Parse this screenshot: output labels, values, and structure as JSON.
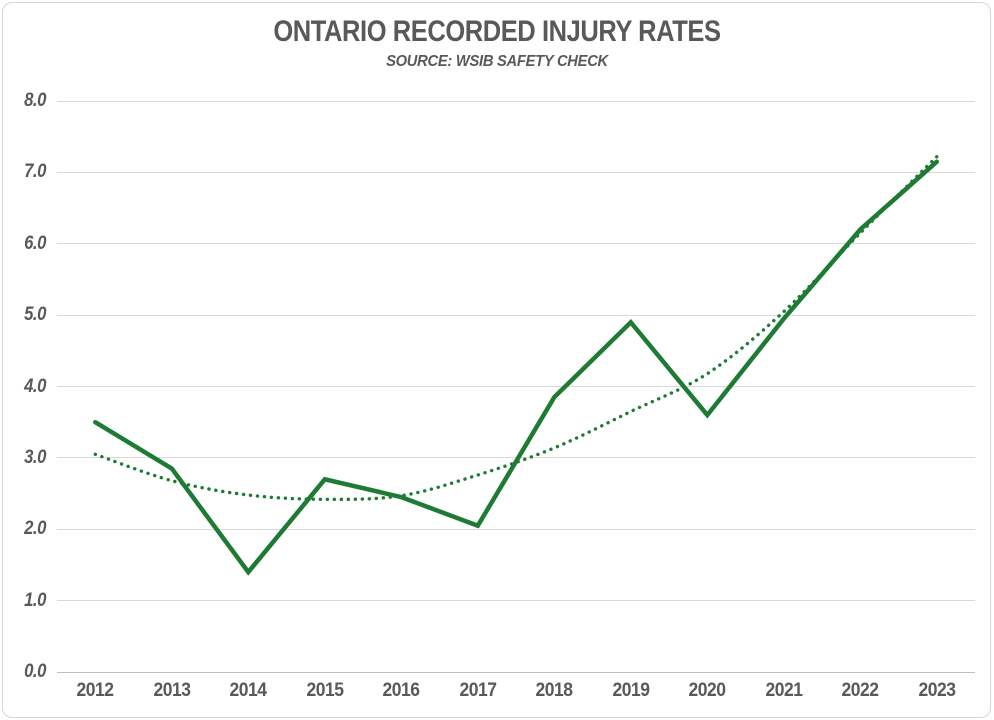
{
  "chart_data": {
    "type": "line",
    "title": "ONTARIO RECORDED INJURY RATES",
    "subtitle": "SOURCE: WSIB SAFETY CHECK",
    "categories": [
      "2012",
      "2013",
      "2014",
      "2015",
      "2016",
      "2017",
      "2018",
      "2019",
      "2020",
      "2021",
      "2022",
      "2023"
    ],
    "series": [
      {
        "name": "recorded-injury-rate",
        "style": "solid",
        "values": [
          3.5,
          2.85,
          1.4,
          2.7,
          2.45,
          2.05,
          3.85,
          4.9,
          3.6,
          4.95,
          6.2,
          7.15
        ]
      },
      {
        "name": "trendline",
        "style": "dotted",
        "values": [
          3.05,
          2.68,
          2.48,
          2.42,
          2.47,
          2.76,
          3.14,
          3.65,
          4.18,
          5.05,
          6.15,
          7.22
        ]
      }
    ],
    "xlabel": "",
    "ylabel": "",
    "ylim": [
      0,
      8
    ],
    "ytick_labels": [
      "0.0",
      "1.0",
      "2.0",
      "3.0",
      "4.0",
      "5.0",
      "6.0",
      "7.0",
      "8.0"
    ],
    "grid": true,
    "legend_position": "none",
    "colors": {
      "line": "#1e7b34",
      "text": "#595959",
      "gridline": "#d9d9d9",
      "axis_line": "#bfbfbf",
      "border": "#d6d6d6",
      "background": "#ffffff"
    }
  }
}
